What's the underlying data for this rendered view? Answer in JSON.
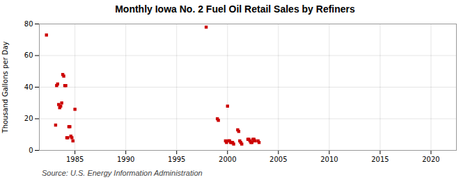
{
  "chart_data": {
    "type": "scatter",
    "title": "Monthly Iowa No. 2 Fuel Oil Retail Sales by Refiners",
    "ylabel": "Thousand Gallons per Day",
    "caption": "Source: U.S. Energy Information Administration",
    "color": "#cc0000",
    "marker": "square",
    "grid": true,
    "xlim": [
      1981.5,
      2022.5
    ],
    "ylim": [
      0,
      80
    ],
    "xticks": [
      1985,
      1990,
      1995,
      2000,
      2005,
      2010,
      2015,
      2020
    ],
    "yticks": [
      0,
      20,
      40,
      60,
      80
    ],
    "x": [
      1982.2,
      1983.1,
      1983.2,
      1983.3,
      1983.4,
      1983.5,
      1983.6,
      1983.7,
      1983.8,
      1983.9,
      1984.0,
      1984.1,
      1984.2,
      1984.3,
      1984.4,
      1984.5,
      1984.6,
      1984.7,
      1984.8,
      1985.0,
      1997.9,
      1999.0,
      1999.1,
      1999.8,
      1999.9,
      2000.0,
      2000.1,
      2000.2,
      2000.3,
      2000.4,
      2000.5,
      2000.6,
      2001.0,
      2001.1,
      2001.2,
      2001.3,
      2001.4,
      2002.0,
      2002.1,
      2002.2,
      2002.3,
      2002.4,
      2002.5,
      2002.6,
      2002.7,
      2003.0,
      2003.1
    ],
    "values": [
      73,
      16,
      41,
      42,
      29,
      27,
      28,
      30,
      48,
      47,
      41,
      41,
      8,
      8,
      15,
      15,
      9,
      8,
      6,
      26,
      78,
      20,
      19,
      6,
      5,
      28,
      6,
      6,
      5,
      5,
      5,
      4,
      13,
      12,
      6,
      5,
      4,
      7,
      7,
      6,
      5,
      5,
      7,
      7,
      6,
      6,
      5
    ]
  }
}
